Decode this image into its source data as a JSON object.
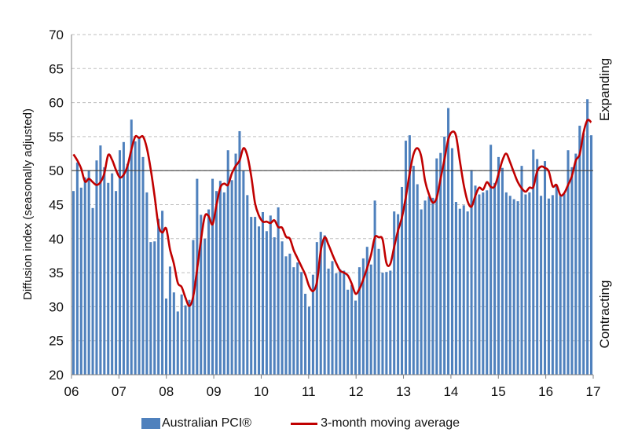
{
  "chart_data": {
    "type": "bar",
    "ylabel": "Diffusion index (seasonally adjusted)",
    "ylim": [
      20,
      70
    ],
    "yticks": [
      20,
      25,
      30,
      35,
      40,
      45,
      50,
      55,
      60,
      65,
      70
    ],
    "xticks": [
      "06",
      "07",
      "08",
      "09",
      "10",
      "11",
      "12",
      "13",
      "14",
      "15",
      "16",
      "17"
    ],
    "reference_line": 50,
    "annotations": {
      "upper": "Expanding",
      "lower": "Contracting"
    },
    "legend": {
      "bar": "Australian PCI®",
      "line": "3-month moving average"
    },
    "colors": {
      "bar": "#4f81bd",
      "line": "#c00000",
      "grid": "#bfbfbf",
      "reference": "#404040"
    },
    "series": [
      {
        "name": "Australian PCI®",
        "type": "bar",
        "values": [
          47,
          51.2,
          47.5,
          49,
          50,
          44.5,
          51.5,
          53.7,
          50.5,
          48.2,
          49.6,
          47,
          53,
          54.2,
          51,
          57.5,
          54.3,
          55,
          52,
          46.8,
          39.5,
          39.6,
          42.9,
          44.1,
          31.2,
          35.9,
          32.1,
          29.3,
          31.8,
          30.2,
          31,
          39.8,
          48.8,
          43.5,
          40,
          44.3,
          48.8,
          47,
          48.5,
          46.8,
          53,
          48.6,
          52.5,
          55.8,
          50,
          46.4,
          43.2,
          43.2,
          41.8,
          43.9,
          41.1,
          43.4,
          40.2,
          44.6,
          39.6,
          37.4,
          37.8,
          35.8,
          36.5,
          35.1,
          31.9,
          30,
          34.7,
          39.5,
          41,
          40.5,
          35.6,
          36.7,
          34.9,
          35.5,
          35.3,
          32.5,
          33.2,
          30.9,
          35.8,
          37.1,
          38.8,
          36.2,
          45.6,
          38.5,
          35,
          35.1,
          35.3,
          44,
          43.6,
          47.6,
          54.4,
          55.2,
          50.7,
          48,
          44.3,
          45.6,
          46.2,
          46,
          51.8,
          52.6,
          55,
          59.2,
          53.3,
          45.4,
          44.4,
          44.9,
          44,
          50.1,
          47.8,
          46.5,
          46.8,
          47.1,
          53.8,
          48.2,
          52,
          50.4,
          46.8,
          46.3,
          45.8,
          45.5,
          50.7,
          46.5,
          46.8,
          53.1,
          51.7,
          46.3,
          51.4,
          45.9,
          46.4,
          47.8,
          46.3,
          46.6,
          53,
          50.5,
          52.5,
          56.6,
          55.5,
          60.5,
          55.2
        ]
      },
      {
        "name": "3-month moving average",
        "type": "line",
        "values": [
          52.4,
          51.5,
          50.3,
          48.4,
          48.8,
          48.3,
          47.9,
          48.3,
          49.6,
          52.3,
          51.6,
          50.1,
          49,
          49.4,
          50.7,
          53.1,
          55,
          54.8,
          55,
          53.3,
          50.2,
          46.3,
          42,
          40.9,
          41.5,
          38.4,
          36.3,
          33.5,
          32.9,
          31.3,
          30.1,
          31.5,
          35.5,
          39.8,
          43.3,
          43.3,
          42.1,
          44.9,
          47.5,
          48.1,
          47.9,
          49.6,
          50.7,
          51.5,
          53.3,
          52.2,
          49.2,
          45.2,
          43.4,
          42.5,
          42.5,
          42.3,
          42.7,
          41.7,
          41.6,
          40.3,
          40,
          38.3,
          37.1,
          35.9,
          34.7,
          33,
          32.3,
          33.6,
          38.2,
          40.2,
          39.1,
          37.7,
          36.4,
          35.3,
          35,
          34.6,
          33.4,
          31.9,
          32.6,
          34,
          35.7,
          37.6,
          40.2,
          40.2,
          39.9,
          36.4,
          36.3,
          38.8,
          41.2,
          43.1,
          46.1,
          49.6,
          52.4,
          53.3,
          52.1,
          48.5,
          46.5,
          45.3,
          46,
          48.8,
          51.6,
          54.6,
          55.7,
          55.1,
          51.4,
          47.9,
          45.5,
          44.7,
          46.3,
          47.5,
          47.2,
          48.3,
          47.6,
          47.7,
          49.5,
          51.5,
          52.5,
          51.2,
          49.7,
          48.3,
          47.4,
          46.9,
          47.5,
          47.6,
          49.9,
          50.6,
          50.4,
          49.9,
          47.7,
          47.9,
          46.4,
          46.7,
          47.9,
          49.2,
          51.5,
          52.4,
          55.6,
          57.4,
          57.1
        ]
      }
    ]
  }
}
